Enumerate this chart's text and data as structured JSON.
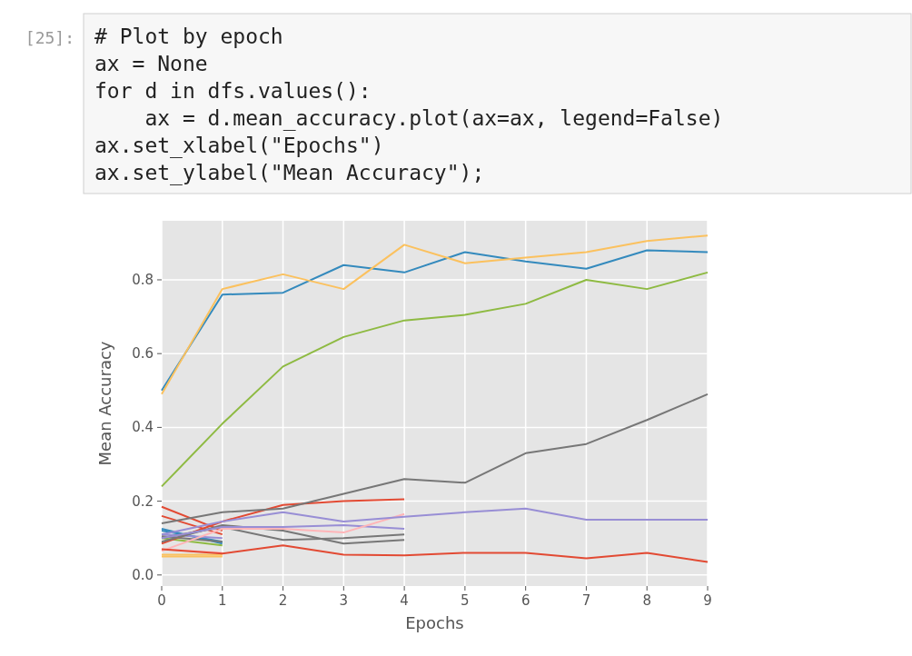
{
  "chart_data": {
    "type": "line",
    "xlabel": "Epochs",
    "ylabel": "Mean Accuracy",
    "annotations": [
      "[25]:",
      "# Plot by epoch",
      "ax = None",
      "for d in dfs.values():",
      "    ax = d.mean_accuracy.plot(ax=ax, legend=False)",
      "ax.set_xlabel(\"Epochs\")",
      "ax.set_ylabel(\"Mean Accuracy\");"
    ],
    "x": [
      0,
      1,
      2,
      3,
      4,
      5,
      6,
      7,
      8,
      9
    ],
    "xlim": [
      0,
      9
    ],
    "xticks": [
      0,
      1,
      2,
      3,
      4,
      5,
      6,
      7,
      8,
      9
    ],
    "ylim": [
      -0.03,
      0.96
    ],
    "yticks": [
      {
        "value": 0,
        "label": "0.0"
      },
      {
        "value": 0.2,
        "label": "0.2"
      },
      {
        "value": 0.4,
        "label": "0.4"
      },
      {
        "value": 0.6,
        "label": "0.6"
      },
      {
        "value": 0.8,
        "label": "0.8"
      }
    ],
    "grid": true,
    "line_style": "solid",
    "marker": "none",
    "series": [
      {
        "color": "#e24a33",
        "values": [
          0.185,
          0.12,
          null,
          null,
          null,
          null,
          null,
          null,
          null,
          null
        ]
      },
      {
        "color": "#e24a33",
        "values": [
          0.16,
          0.11,
          null,
          null,
          null,
          null,
          null,
          null,
          null,
          null
        ]
      },
      {
        "color": "#348abd",
        "values": [
          0.12,
          0.09,
          null,
          null,
          null,
          null,
          null,
          null,
          null,
          null
        ]
      },
      {
        "color": "#348abd",
        "values": [
          0.125,
          0.085,
          null,
          null,
          null,
          null,
          null,
          null,
          null,
          null
        ]
      },
      {
        "color": "#8eba42",
        "values": [
          0.1,
          0.08,
          null,
          null,
          null,
          null,
          null,
          null,
          null,
          null
        ]
      },
      {
        "color": "#fbc15e",
        "values": [
          0.05,
          0.05,
          null,
          null,
          null,
          null,
          null,
          null,
          null,
          null
        ]
      },
      {
        "color": "#fbc15e",
        "values": [
          0.055,
          0.055,
          null,
          null,
          null,
          null,
          null,
          null,
          null,
          null
        ]
      },
      {
        "color": "#ffb5b8",
        "values": [
          0.07,
          0.06,
          null,
          null,
          null,
          null,
          null,
          null,
          null,
          null
        ]
      },
      {
        "color": "#988ed5",
        "values": [
          0.11,
          0.1,
          null,
          null,
          null,
          null,
          null,
          null,
          null,
          null
        ]
      },
      {
        "color": "#777777",
        "values": [
          0.105,
          0.09,
          null,
          null,
          null,
          null,
          null,
          null,
          null,
          null
        ]
      },
      {
        "color": "#e24a33",
        "values": [
          0.085,
          0.145,
          0.19,
          0.2,
          0.205,
          null,
          null,
          null,
          null,
          null
        ]
      },
      {
        "color": "#777777",
        "values": [
          0.1,
          0.13,
          0.095,
          0.1,
          0.11,
          null,
          null,
          null,
          null,
          null
        ]
      },
      {
        "color": "#777777",
        "values": [
          0.09,
          0.135,
          0.12,
          0.085,
          0.095,
          null,
          null,
          null,
          null,
          null
        ]
      },
      {
        "color": "#988ed5",
        "values": [
          0.1,
          0.13,
          0.13,
          0.135,
          0.125,
          null,
          null,
          null,
          null,
          null
        ]
      },
      {
        "color": "#ffb5b8",
        "values": [
          0.065,
          0.125,
          0.125,
          0.115,
          0.165,
          null,
          null,
          null,
          null,
          null
        ]
      },
      {
        "color": "#e24a33",
        "values": [
          0.07,
          0.058,
          0.08,
          0.055,
          0.053,
          0.06,
          0.06,
          0.045,
          0.06,
          0.035
        ]
      },
      {
        "color": "#988ed5",
        "values": [
          0.11,
          0.145,
          0.17,
          0.145,
          0.158,
          0.17,
          0.18,
          0.15,
          0.15,
          0.15
        ]
      },
      {
        "color": "#777777",
        "values": [
          0.14,
          0.17,
          0.18,
          0.22,
          0.26,
          0.25,
          0.33,
          0.355,
          0.42,
          0.49
        ]
      },
      {
        "color": "#8eba42",
        "values": [
          0.24,
          0.41,
          0.565,
          0.645,
          0.69,
          0.705,
          0.735,
          0.8,
          0.775,
          0.82
        ]
      },
      {
        "color": "#348abd",
        "values": [
          0.5,
          0.76,
          0.765,
          0.84,
          0.82,
          0.875,
          0.85,
          0.83,
          0.88,
          0.875
        ]
      },
      {
        "color": "#fbc15e",
        "values": [
          0.49,
          0.775,
          0.815,
          0.775,
          0.895,
          0.845,
          0.86,
          0.875,
          0.905,
          0.92
        ]
      }
    ]
  }
}
